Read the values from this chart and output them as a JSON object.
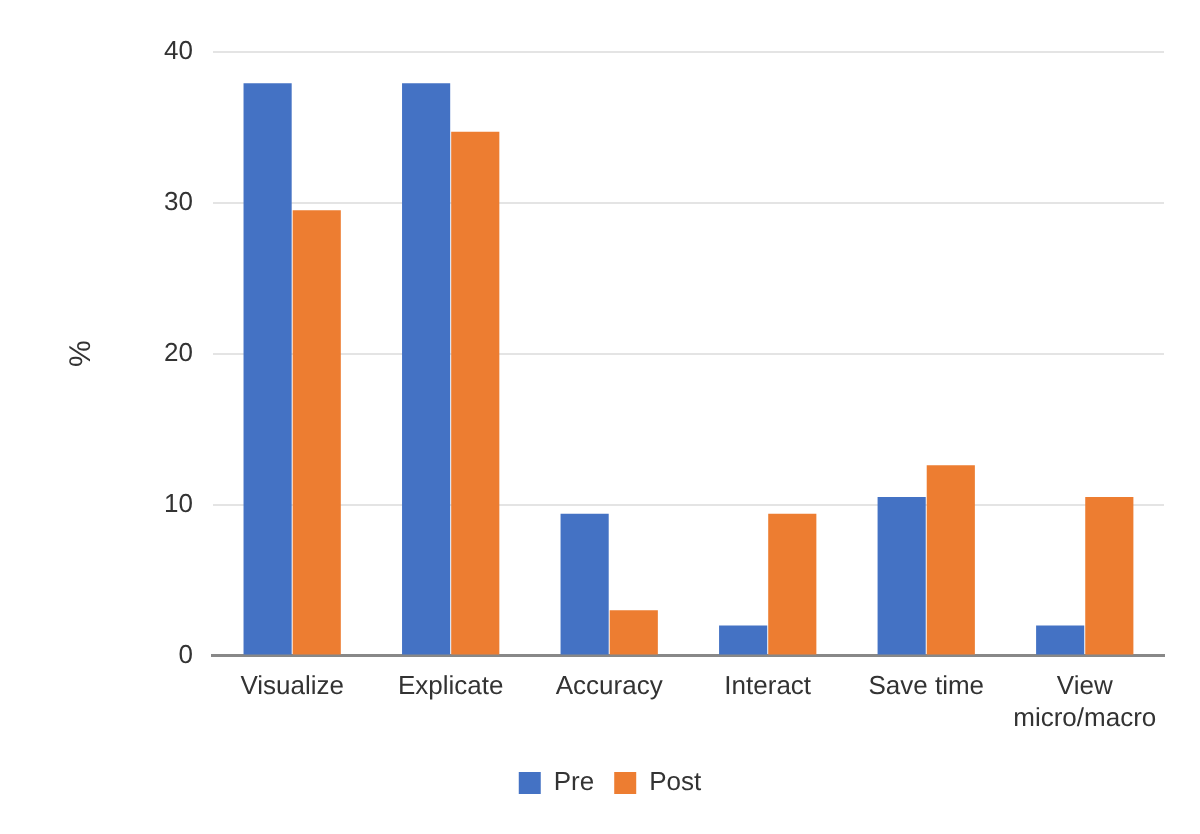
{
  "chart_data": {
    "type": "bar",
    "ylabel": "%",
    "categories": [
      "Visualize",
      "Explicate",
      "Accuracy",
      "Interact",
      "Save time",
      "View micro/macro"
    ],
    "series": [
      {
        "name": "Pre",
        "color": "#4472c4",
        "values": [
          37.9,
          37.9,
          9.4,
          2.0,
          10.5,
          2.0
        ]
      },
      {
        "name": "Post",
        "color": "#ed7d31",
        "values": [
          29.5,
          34.7,
          3.0,
          9.4,
          12.6,
          10.5
        ]
      }
    ],
    "ylim": [
      0,
      40
    ],
    "yticks": [
      0,
      10,
      20,
      30,
      40
    ],
    "grid": "y",
    "legend": "bottom"
  }
}
